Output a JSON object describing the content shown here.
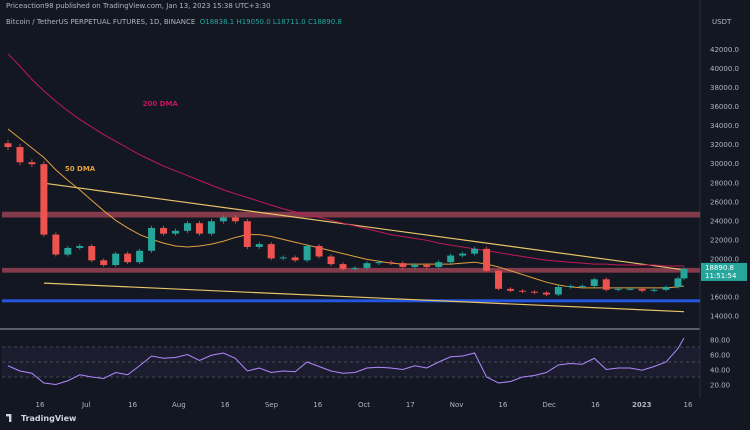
{
  "header": {
    "publisher": "Priceaction98 published on TradingView.com, Jan 13, 2023 15:38 UTC+3:30",
    "symbol": "Bitcoin / TetherUS PERPETUAL FUTURES, 1D, BINANCE",
    "open": "O18838.1",
    "high": "H19050.0",
    "low": "L18711.0",
    "close": "C18890.8"
  },
  "footer": {
    "brand": "TradingView"
  },
  "colors": {
    "background": "#131722",
    "up": "#26a69a",
    "down": "#ef5350",
    "dma200": "#c2185b",
    "dma50": "#e0a040",
    "wedge": "#e8c46a",
    "zone_red": "#e05a6e",
    "zone_blue": "#2962ff",
    "rsi": "#b388ff"
  },
  "chart_data": [
    {
      "type": "line",
      "name": "price",
      "yaxis_unit": "USDT",
      "ylim": [
        13000,
        44000
      ],
      "yticks": [
        "42000.0",
        "40000.0",
        "38000.0",
        "36000.0",
        "34000.0",
        "32000.0",
        "30000.0",
        "28000.0",
        "26000.0",
        "24000.0",
        "22000.0",
        "20000.0",
        "18000.0",
        "16000.0",
        "14000.0"
      ],
      "ytick_values": [
        42000,
        40000,
        38000,
        36000,
        34000,
        32000,
        30000,
        28000,
        26000,
        24000,
        22000,
        20000,
        18000,
        16000,
        14000
      ],
      "xticks": [
        "16",
        "Jul",
        "16",
        "Aug",
        "16",
        "Sep",
        "16",
        "Oct",
        "17",
        "Nov",
        "16",
        "Dec",
        "16",
        "2023",
        "16"
      ],
      "x_dates": [
        "2022-06-01",
        "2022-06-05",
        "2022-06-09",
        "2022-06-13",
        "2022-06-17",
        "2022-06-21",
        "2022-06-25",
        "2022-06-29",
        "2022-07-03",
        "2022-07-07",
        "2022-07-11",
        "2022-07-15",
        "2022-07-19",
        "2022-07-23",
        "2022-07-27",
        "2022-07-31",
        "2022-08-04",
        "2022-08-08",
        "2022-08-12",
        "2022-08-16",
        "2022-08-20",
        "2022-08-24",
        "2022-08-28",
        "2022-09-01",
        "2022-09-05",
        "2022-09-09",
        "2022-09-13",
        "2022-09-17",
        "2022-09-21",
        "2022-09-25",
        "2022-09-29",
        "2022-10-03",
        "2022-10-07",
        "2022-10-11",
        "2022-10-15",
        "2022-10-19",
        "2022-10-23",
        "2022-10-27",
        "2022-10-31",
        "2022-11-04",
        "2022-11-08",
        "2022-11-12",
        "2022-11-16",
        "2022-11-20",
        "2022-11-24",
        "2022-11-28",
        "2022-12-02",
        "2022-12-06",
        "2022-12-10",
        "2022-12-14",
        "2022-12-18",
        "2022-12-22",
        "2022-12-26",
        "2022-12-30",
        "2023-01-03",
        "2023-01-07",
        "2023-01-11",
        "2023-01-13"
      ],
      "close": [
        31700,
        30100,
        29900,
        22500,
        20400,
        21100,
        21300,
        19800,
        19300,
        20500,
        19600,
        20800,
        23200,
        22600,
        22900,
        23700,
        22600,
        23900,
        24300,
        23900,
        21200,
        21500,
        20000,
        20100,
        19800,
        21300,
        20200,
        19400,
        18900,
        19000,
        19500,
        19600,
        19500,
        19100,
        19300,
        19100,
        19600,
        20300,
        20500,
        21000,
        18700,
        16800,
        16600,
        16500,
        16400,
        16200,
        17000,
        17100,
        17100,
        17800,
        16700,
        16800,
        16800,
        16600,
        16700,
        17000,
        17900,
        18891
      ],
      "series": [
        {
          "name": "200 DMA",
          "values": [
            41500,
            40200,
            38800,
            37600,
            36500,
            35500,
            34600,
            33800,
            33000,
            32300,
            31600,
            30900,
            30300,
            29700,
            29200,
            28700,
            28200,
            27700,
            27200,
            26800,
            26400,
            26000,
            25600,
            25200,
            24900,
            24600,
            24300,
            24000,
            23700,
            23400,
            23100,
            22800,
            22500,
            22300,
            22100,
            21900,
            21600,
            21400,
            21200,
            21000,
            20800,
            20600,
            20400,
            20200,
            20000,
            19800,
            19700,
            19600,
            19500,
            19400,
            19400,
            19300,
            19300,
            19300,
            19300,
            19200,
            19200,
            19200
          ]
        },
        {
          "name": "50 DMA",
          "values": [
            33600,
            32600,
            31600,
            30600,
            29300,
            28200,
            27200,
            26100,
            25000,
            24000,
            23200,
            22500,
            22000,
            21600,
            21300,
            21200,
            21300,
            21500,
            21800,
            22200,
            22500,
            22500,
            22300,
            22000,
            21700,
            21400,
            21100,
            20800,
            20500,
            20200,
            19900,
            19700,
            19500,
            19400,
            19400,
            19400,
            19400,
            19400,
            19500,
            19600,
            19400,
            19100,
            18700,
            18300,
            17900,
            17500,
            17200,
            17000,
            16900,
            16900,
            16900,
            16900,
            16900,
            16900,
            16900,
            16900,
            17000,
            17100
          ]
        }
      ],
      "annotations": [
        {
          "text": "200 DMA",
          "date": "2022-07-16",
          "price": 36000
        },
        {
          "text": "50 DMA",
          "date": "2022-06-20",
          "price": 29200
        }
      ],
      "last_price_label": "18890.8",
      "countdown_label": "11:51:54",
      "zones": [
        {
          "color": "red",
          "from": 24300,
          "to": 24900
        },
        {
          "color": "red",
          "from": 18500,
          "to": 19000
        },
        {
          "color": "blue",
          "from": 15400,
          "to": 15700
        }
      ],
      "trendlines": [
        {
          "from": {
            "date": "2022-06-13",
            "price": 27900
          },
          "to": {
            "date": "2023-01-13",
            "price": 18800
          }
        },
        {
          "from": {
            "date": "2022-06-13",
            "price": 17400
          },
          "to": {
            "date": "2023-01-13",
            "price": 14400
          }
        }
      ]
    },
    {
      "type": "line",
      "name": "RSI",
      "ylim": [
        10,
        90
      ],
      "yticks": [
        "80.00",
        "60.00",
        "40.00",
        "20.00"
      ],
      "ytick_values": [
        80,
        60,
        40,
        20
      ],
      "values": [
        45,
        38,
        35,
        22,
        20,
        25,
        33,
        30,
        28,
        36,
        33,
        45,
        58,
        55,
        56,
        60,
        52,
        59,
        62,
        55,
        38,
        42,
        36,
        38,
        37,
        50,
        44,
        38,
        35,
        36,
        42,
        43,
        42,
        40,
        45,
        42,
        50,
        57,
        58,
        62,
        30,
        22,
        24,
        30,
        32,
        36,
        46,
        48,
        47,
        55,
        40,
        42,
        42,
        39,
        44,
        50,
        68,
        82
      ]
    }
  ]
}
